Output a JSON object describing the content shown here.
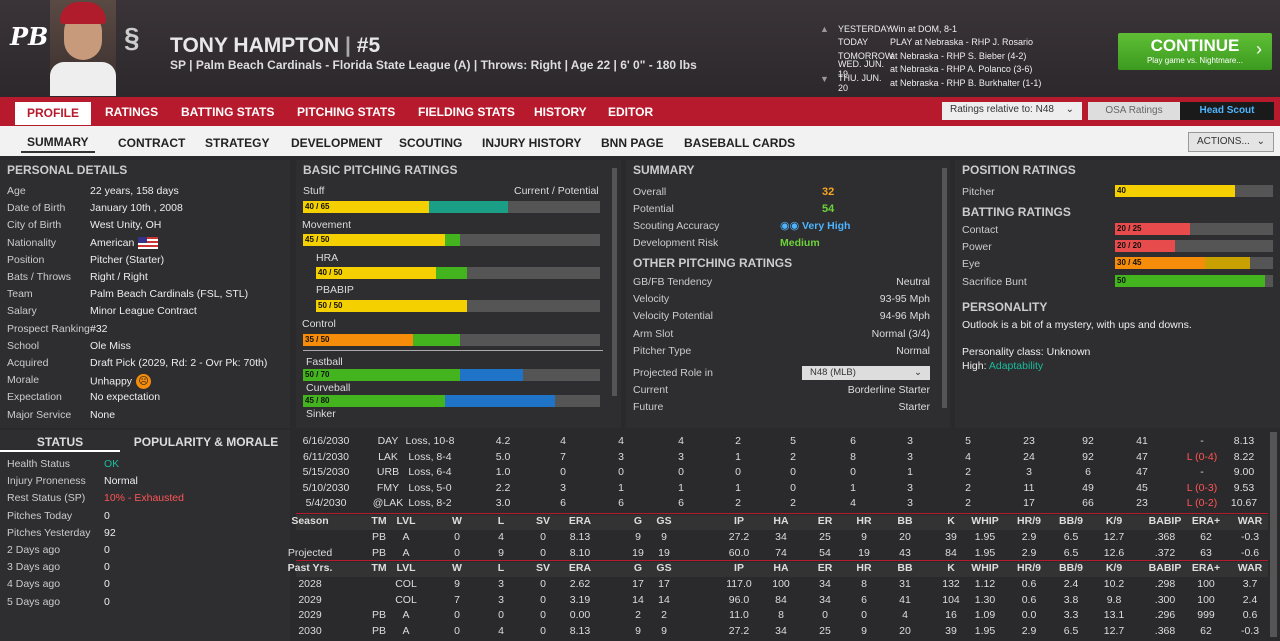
{
  "player": {
    "name": "TONY HAMPTON",
    "number": "#5",
    "sep": "|",
    "sub": "SP | Palm Beach Cardinals - Florida State League (A)  |  Throws: Right  |  Age 22  |  6' 0\" - 180 lbs",
    "logo": "PB"
  },
  "schedule": [
    {
      "day": "YESTERDAY",
      "text": "Win at DOM, 8-1"
    },
    {
      "day": "TODAY",
      "text": "PLAY at Nebraska - RHP J. Rosario"
    },
    {
      "day": "TOMORROW",
      "text": "at Nebraska - RHP S. Bieber (4-2)"
    },
    {
      "day": "WED. JUN. 19",
      "text": "at Nebraska - RHP A. Polanco (3-6)"
    },
    {
      "day": "THU. JUN. 20",
      "text": "at Nebraska - RHP B. Burkhalter (1-1)"
    }
  ],
  "continue": {
    "label": "CONTINUE",
    "sub": "Play game vs. Nightmare..."
  },
  "tabs1": [
    "PROFILE",
    "RATINGS",
    "BATTING STATS",
    "PITCHING STATS",
    "FIELDING STATS",
    "HISTORY",
    "EDITOR"
  ],
  "ratings_rel": "Ratings relative to: N48",
  "osa": "OSA Ratings",
  "head_scout": "Head Scout",
  "tabs2": [
    "SUMMARY",
    "CONTRACT",
    "STRATEGY",
    "DEVELOPMENT",
    "SCOUTING",
    "INJURY HISTORY",
    "BNN PAGE",
    "BASEBALL CARDS"
  ],
  "actions": "ACTIONS...",
  "personal": {
    "title": "PERSONAL DETAILS",
    "rows": [
      [
        "Age",
        "22 years, 158 days"
      ],
      [
        "Date of Birth",
        "January 10th , 2008"
      ],
      [
        "City of Birth",
        "West Unity, OH"
      ],
      [
        "Nationality",
        "American"
      ],
      [
        "Position",
        "Pitcher (Starter)"
      ],
      [
        "Bats / Throws",
        "Right / Right"
      ],
      [
        "Team",
        "Palm Beach Cardinals (FSL, STL)"
      ],
      [
        "Salary",
        "Minor League Contract"
      ],
      [
        "Prospect Ranking",
        "#32"
      ],
      [
        "School",
        "Ole Miss"
      ],
      [
        "Acquired",
        "Draft Pick (2029, Rd: 2 - Ovr Pk: 70th)"
      ],
      [
        "Morale",
        "Unhappy"
      ],
      [
        "Expectation",
        "No expectation"
      ],
      [
        "Major Service",
        "None"
      ]
    ]
  },
  "status": {
    "tab1": "STATUS",
    "tab2": "POPULARITY & MORALE",
    "rows": [
      [
        "Health Status",
        "OK"
      ],
      [
        "Injury Proneness",
        "Normal"
      ],
      [
        "Rest Status (SP)",
        "10% - Exhausted"
      ],
      [
        "Pitches Today",
        "0"
      ],
      [
        "Pitches Yesterday",
        "92"
      ],
      [
        "2 Days ago",
        "0"
      ],
      [
        "3 Days ago",
        "0"
      ],
      [
        "4 Days ago",
        "0"
      ],
      [
        "5 Days ago",
        "0"
      ]
    ]
  },
  "basic": {
    "title": "BASIC PITCHING RATINGS",
    "stuff": "Stuff",
    "cp": "Current / Potential",
    "items": [
      {
        "label": "",
        "val": "40 / 65",
        "cur": 40,
        "pot": 65
      },
      {
        "label": "Movement",
        "val": "45 / 50",
        "cur": 45,
        "pot": 50
      },
      {
        "label": "HRA",
        "val": "40 / 50",
        "cur": 40,
        "pot": 50
      },
      {
        "label": "PBABIP",
        "val": "50 / 50",
        "cur": 50,
        "pot": 50
      },
      {
        "label": "Control",
        "val": "35 / 50",
        "cur": 35,
        "pot": 50
      },
      {
        "label": "Fastball",
        "val": "50 / 70",
        "cur": 50,
        "pot": 70
      },
      {
        "label": "Curveball",
        "val": "45 / 80",
        "cur": 45,
        "pot": 80
      },
      {
        "label": "Sinker",
        "val": "",
        "cur": 0,
        "pot": 0
      }
    ]
  },
  "summary": {
    "title": "SUMMARY",
    "overall": "Overall",
    "overall_v": "32",
    "potential": "Potential",
    "potential_v": "54",
    "acc": "Scouting Accuracy",
    "acc_v": "Very High",
    "risk": "Development Risk",
    "risk_v": "Medium",
    "other_title": "OTHER PITCHING RATINGS",
    "rows": [
      [
        "GB/FB Tendency",
        "Neutral"
      ],
      [
        "Velocity",
        "93-95 Mph"
      ],
      [
        "Velocity Potential",
        "94-96 Mph"
      ],
      [
        "Arm Slot",
        "Normal (3/4)"
      ],
      [
        "Pitcher Type",
        "Normal"
      ]
    ],
    "proj": "Projected Role in",
    "proj_sel": "N48 (MLB)",
    "current": "Current",
    "current_v": "Borderline Starter",
    "future": "Future",
    "future_v": "Starter"
  },
  "position": {
    "title": "POSITION RATINGS",
    "pitcher": "Pitcher",
    "pitcher_v": "40",
    "bat_title": "BATTING RATINGS",
    "bat": [
      {
        "label": "Contact",
        "val": "20 / 25",
        "cur": 20,
        "pot": 25
      },
      {
        "label": "Power",
        "val": "20 / 20",
        "cur": 20,
        "pot": 20
      },
      {
        "label": "Eye",
        "val": "30 / 45",
        "cur": 30,
        "pot": 45
      },
      {
        "label": "Sacrifice Bunt",
        "val": "50",
        "cur": 50,
        "pot": 50
      }
    ],
    "pers_title": "PERSONALITY",
    "pers_text": "Outlook is a bit of a mystery, with ups and downs.",
    "pclass": "Personality class: Unknown",
    "high": "High:",
    "high_v": "Adaptability"
  },
  "games": [
    [
      "6/16/2030",
      "DAY",
      "Loss, 10-8",
      "4.2",
      "4",
      "4",
      "4",
      "2",
      "5",
      "6",
      "3",
      "5",
      "23",
      "92",
      "41",
      "-",
      "8.13"
    ],
    [
      "6/11/2030",
      "LAK",
      "Loss, 8-4",
      "5.0",
      "7",
      "3",
      "3",
      "1",
      "2",
      "8",
      "3",
      "4",
      "24",
      "92",
      "47",
      "L (0-4)",
      "8.22"
    ],
    [
      "5/15/2030",
      "URB",
      "Loss, 6-4",
      "1.0",
      "0",
      "0",
      "0",
      "0",
      "0",
      "0",
      "1",
      "2",
      "3",
      "6",
      "47",
      "-",
      "9.00"
    ],
    [
      "5/10/2030",
      "FMY",
      "Loss, 5-0",
      "2.2",
      "3",
      "1",
      "1",
      "1",
      "0",
      "1",
      "3",
      "2",
      "11",
      "49",
      "45",
      "L (0-3)",
      "9.53"
    ],
    [
      "5/4/2030",
      "@LAK",
      "Loss, 8-2",
      "3.0",
      "6",
      "6",
      "6",
      "2",
      "2",
      "4",
      "3",
      "2",
      "17",
      "66",
      "23",
      "L (0-2)",
      "10.67"
    ]
  ],
  "season_hdr": [
    "Season",
    "TM",
    "LVL",
    "W",
    "L",
    "SV",
    "ERA",
    "G",
    "GS",
    "IP",
    "HA",
    "ER",
    "HR",
    "BB",
    "K",
    "WHIP",
    "HR/9",
    "BB/9",
    "K/9",
    "BABIP",
    "ERA+",
    "WAR"
  ],
  "season": [
    [
      "",
      "PB",
      "A",
      "0",
      "4",
      "0",
      "8.13",
      "9",
      "9",
      "27.2",
      "34",
      "25",
      "9",
      "20",
      "39",
      "1.95",
      "2.9",
      "6.5",
      "12.7",
      ".368",
      "62",
      "-0.3"
    ],
    [
      "Projected",
      "PB",
      "A",
      "0",
      "9",
      "0",
      "8.10",
      "19",
      "19",
      "60.0",
      "74",
      "54",
      "19",
      "43",
      "84",
      "1.95",
      "2.9",
      "6.5",
      "12.6",
      ".372",
      "63",
      "-0.6"
    ]
  ],
  "past_hdr": [
    "Past Yrs.",
    "TM",
    "LVL",
    "W",
    "L",
    "SV",
    "ERA",
    "G",
    "GS",
    "IP",
    "HA",
    "ER",
    "HR",
    "BB",
    "K",
    "WHIP",
    "HR/9",
    "BB/9",
    "K/9",
    "BABIP",
    "ERA+",
    "WAR"
  ],
  "past": [
    [
      "2028",
      "",
      "COL",
      "9",
      "3",
      "0",
      "2.62",
      "17",
      "17",
      "117.0",
      "100",
      "34",
      "8",
      "31",
      "132",
      "1.12",
      "0.6",
      "2.4",
      "10.2",
      ".298",
      "100",
      "3.7"
    ],
    [
      "2029",
      "",
      "COL",
      "7",
      "3",
      "0",
      "3.19",
      "14",
      "14",
      "96.0",
      "84",
      "34",
      "6",
      "41",
      "104",
      "1.30",
      "0.6",
      "3.8",
      "9.8",
      ".300",
      "100",
      "2.4"
    ],
    [
      "2029",
      "PB",
      "A",
      "0",
      "0",
      "0",
      "0.00",
      "2",
      "2",
      "11.0",
      "8",
      "0",
      "0",
      "4",
      "16",
      "1.09",
      "0.0",
      "3.3",
      "13.1",
      ".296",
      "999",
      "0.6"
    ],
    [
      "2030",
      "PB",
      "A",
      "0",
      "4",
      "0",
      "8.13",
      "9",
      "9",
      "27.2",
      "34",
      "25",
      "9",
      "20",
      "39",
      "1.95",
      "2.9",
      "6.5",
      "12.7",
      ".368",
      "62",
      "-0.3"
    ]
  ],
  "colors": {
    "red": "#b71a2d",
    "yellow": "#f5d000",
    "green": "#43b41e",
    "blue": "#1f74c8",
    "teal": "#1a9e86",
    "orange": "#f58c0a"
  }
}
